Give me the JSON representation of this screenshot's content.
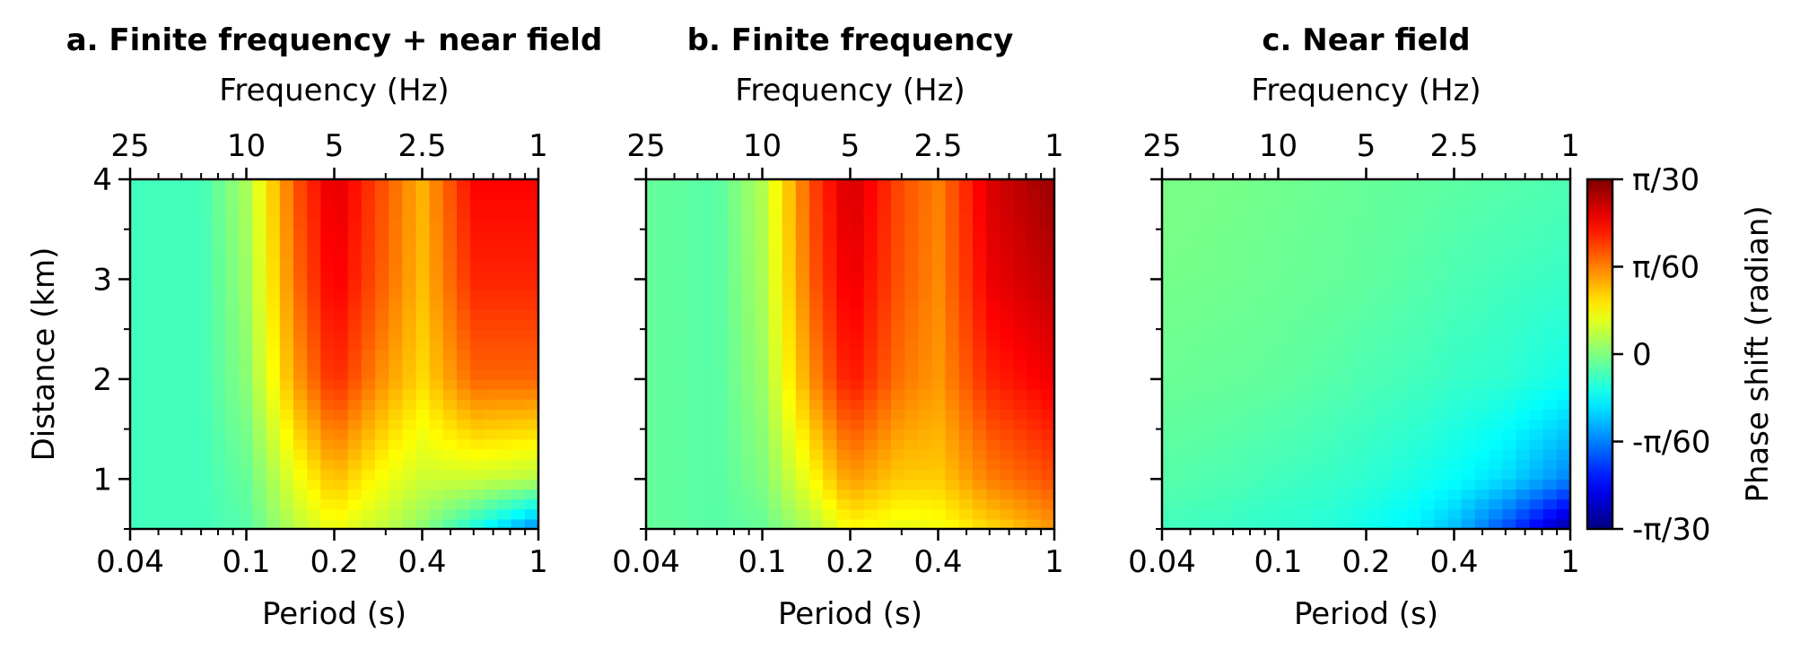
{
  "chart_data": [
    {
      "type": "heatmap",
      "title": "a. Finite frequency + near field",
      "xlabel": "Period (s)",
      "x2label": "Frequency (Hz)",
      "ylabel": "Distance (km)",
      "xscale": "log",
      "xlim": [
        0.04,
        1
      ],
      "ylim": [
        0.5,
        4
      ],
      "xticks": [
        {
          "value": 0.04,
          "label": "0.04"
        },
        {
          "value": 0.1,
          "label": "0.1"
        },
        {
          "value": 0.2,
          "label": "0.2"
        },
        {
          "value": 0.4,
          "label": "0.4"
        },
        {
          "value": 1,
          "label": "1"
        }
      ],
      "x2ticks": [
        {
          "value": 0.04,
          "label": "25"
        },
        {
          "value": 0.1,
          "label": "10"
        },
        {
          "value": 0.2,
          "label": "5"
        },
        {
          "value": 0.4,
          "label": "2.5"
        },
        {
          "value": 1,
          "label": "1"
        }
      ],
      "yticks": [
        {
          "value": 1,
          "label": "1"
        },
        {
          "value": 2,
          "label": "2"
        },
        {
          "value": 3,
          "label": "3"
        },
        {
          "value": 4,
          "label": "4"
        }
      ],
      "show_yticklabels": true,
      "phase_shift_by_period_and_distance": {
        "periods_s": [
          0.04,
          0.07,
          0.1,
          0.15,
          0.2,
          0.3,
          0.4,
          0.6,
          1.0
        ],
        "distances_km": [
          0.5,
          1,
          2,
          3,
          4
        ],
        "values_in_pi_over_30": [
          [
            -0.12,
            -0.12,
            -0.08,
            0.12,
            0.22,
            0.12,
            0.02,
            -0.2,
            -0.5
          ],
          [
            -0.12,
            -0.12,
            -0.05,
            0.22,
            0.38,
            0.22,
            0.15,
            0.15,
            0.1
          ],
          [
            -0.12,
            -0.12,
            0.02,
            0.45,
            0.68,
            0.45,
            0.32,
            0.55,
            0.55
          ],
          [
            -0.12,
            -0.12,
            0.05,
            0.55,
            0.78,
            0.55,
            0.38,
            0.68,
            0.68
          ],
          [
            -0.12,
            -0.12,
            0.08,
            0.6,
            0.82,
            0.58,
            0.4,
            0.75,
            0.75
          ]
        ]
      }
    },
    {
      "type": "heatmap",
      "title": "b. Finite frequency",
      "xlabel": "Period (s)",
      "x2label": "Frequency (Hz)",
      "xscale": "log",
      "xlim": [
        0.04,
        1
      ],
      "ylim": [
        0.5,
        4
      ],
      "xticks": [
        {
          "value": 0.04,
          "label": "0.04"
        },
        {
          "value": 0.1,
          "label": "0.1"
        },
        {
          "value": 0.2,
          "label": "0.2"
        },
        {
          "value": 0.4,
          "label": "0.4"
        },
        {
          "value": 1,
          "label": "1"
        }
      ],
      "x2ticks": [
        {
          "value": 0.04,
          "label": "25"
        },
        {
          "value": 0.1,
          "label": "10"
        },
        {
          "value": 0.2,
          "label": "5"
        },
        {
          "value": 0.4,
          "label": "2.5"
        },
        {
          "value": 1,
          "label": "1"
        }
      ],
      "yticks": [
        {
          "value": 1,
          "label": "1"
        },
        {
          "value": 2,
          "label": "2"
        },
        {
          "value": 3,
          "label": "3"
        },
        {
          "value": 4,
          "label": "4"
        }
      ],
      "show_yticklabels": false,
      "phase_shift_by_period_and_distance": {
        "periods_s": [
          0.04,
          0.07,
          0.1,
          0.15,
          0.2,
          0.3,
          0.4,
          0.6,
          1.0
        ],
        "distances_km": [
          0.5,
          1,
          2,
          3,
          4
        ],
        "values_in_pi_over_30": [
          [
            -0.05,
            -0.08,
            -0.05,
            0.1,
            0.25,
            0.2,
            0.22,
            0.32,
            0.45
          ],
          [
            -0.05,
            -0.08,
            0.0,
            0.25,
            0.45,
            0.35,
            0.35,
            0.5,
            0.6
          ],
          [
            -0.05,
            -0.08,
            0.05,
            0.48,
            0.72,
            0.52,
            0.45,
            0.68,
            0.78
          ],
          [
            -0.05,
            -0.08,
            0.08,
            0.58,
            0.8,
            0.58,
            0.48,
            0.78,
            0.88
          ],
          [
            -0.05,
            -0.08,
            0.1,
            0.62,
            0.85,
            0.6,
            0.5,
            0.82,
            0.95
          ]
        ]
      }
    },
    {
      "type": "heatmap",
      "title": "c. Near field",
      "xlabel": "Period (s)",
      "x2label": "Frequency (Hz)",
      "xscale": "log",
      "xlim": [
        0.04,
        1
      ],
      "ylim": [
        0.5,
        4
      ],
      "xticks": [
        {
          "value": 0.04,
          "label": "0.04"
        },
        {
          "value": 0.1,
          "label": "0.1"
        },
        {
          "value": 0.2,
          "label": "0.2"
        },
        {
          "value": 0.4,
          "label": "0.4"
        },
        {
          "value": 1,
          "label": "1"
        }
      ],
      "x2ticks": [
        {
          "value": 0.04,
          "label": "25"
        },
        {
          "value": 0.1,
          "label": "10"
        },
        {
          "value": 0.2,
          "label": "5"
        },
        {
          "value": 0.4,
          "label": "2.5"
        },
        {
          "value": 1,
          "label": "1"
        }
      ],
      "yticks": [
        {
          "value": 1,
          "label": "1"
        },
        {
          "value": 2,
          "label": "2"
        },
        {
          "value": 3,
          "label": "3"
        },
        {
          "value": 4,
          "label": "4"
        }
      ],
      "show_yticklabels": false,
      "phase_shift_by_period_and_distance": {
        "periods_s": [
          0.04,
          0.07,
          0.1,
          0.15,
          0.2,
          0.3,
          0.4,
          0.6,
          1.0
        ],
        "distances_km": [
          0.5,
          1,
          2,
          3,
          4
        ],
        "values_in_pi_over_30": [
          [
            -0.12,
            -0.14,
            -0.16,
            -0.18,
            -0.22,
            -0.28,
            -0.38,
            -0.6,
            -0.95
          ],
          [
            -0.08,
            -0.1,
            -0.12,
            -0.14,
            -0.16,
            -0.2,
            -0.24,
            -0.32,
            -0.5
          ],
          [
            -0.04,
            -0.05,
            -0.06,
            -0.08,
            -0.1,
            -0.12,
            -0.14,
            -0.16,
            -0.22
          ],
          [
            -0.02,
            -0.03,
            -0.04,
            -0.05,
            -0.06,
            -0.08,
            -0.1,
            -0.12,
            -0.14
          ],
          [
            -0.01,
            -0.02,
            -0.03,
            -0.04,
            -0.05,
            -0.06,
            -0.07,
            -0.08,
            -0.1
          ]
        ]
      }
    }
  ],
  "colorbar": {
    "label": "Phase shift (radian)",
    "colormap": "jet",
    "range_in_pi_over_30": [
      -1,
      1
    ],
    "ticks": [
      {
        "value": 1,
        "label": "π/30"
      },
      {
        "value": 0.5,
        "label": "π/60"
      },
      {
        "value": 0,
        "label": "0"
      },
      {
        "value": -0.5,
        "label": "-π/60"
      },
      {
        "value": -1,
        "label": "-π/30"
      }
    ]
  }
}
